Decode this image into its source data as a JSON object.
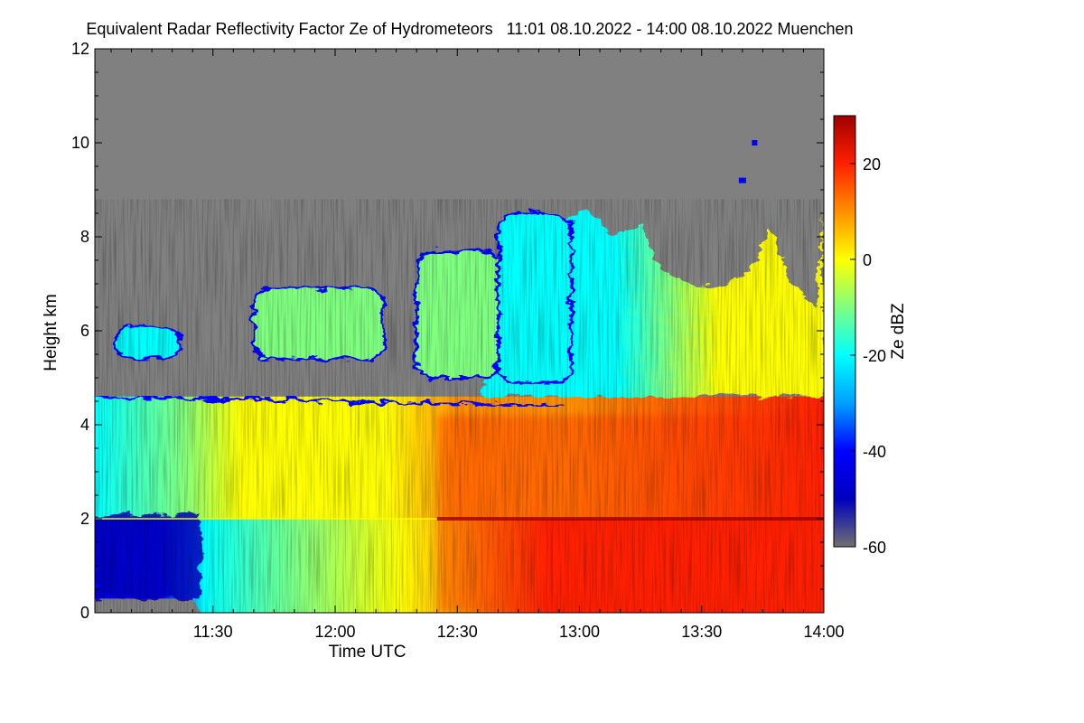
{
  "chart_data": {
    "type": "heatmap",
    "title": "Equivalent Radar Reflectivity Factor Ze of Hydrometeors   11:01 08.10.2022 - 14:00 08.10.2022 Muenchen",
    "xlabel": "Time UTC",
    "ylabel": "Height km",
    "x_range": [
      "11:01",
      "14:00"
    ],
    "x_ticks": [
      "11:30",
      "12:00",
      "12:30",
      "13:00",
      "13:30",
      "14:00"
    ],
    "ylim": [
      0,
      12
    ],
    "y_ticks": [
      "0",
      "2",
      "4",
      "6",
      "8",
      "10",
      "12"
    ],
    "background_color": "#808080",
    "colorbar": {
      "label": "Ze dBZ",
      "range": [
        -60,
        30
      ],
      "ticks": [
        "-60",
        "-40",
        "-20",
        "0",
        "20"
      ],
      "colormap": "jet",
      "colors": [
        "#707070",
        "#0000c0",
        "#0000ff",
        "#00a0ff",
        "#00ffff",
        "#80ff80",
        "#ffff00",
        "#ff9000",
        "#ff2000",
        "#a00000"
      ]
    },
    "features": {
      "melting_layer_height_km": 2.0,
      "cloud_top_early_km": 4.6,
      "cloud_top_late_km": 8.5,
      "max_echo_top_km": 10.0,
      "rain_onset_time": "12:25"
    }
  }
}
